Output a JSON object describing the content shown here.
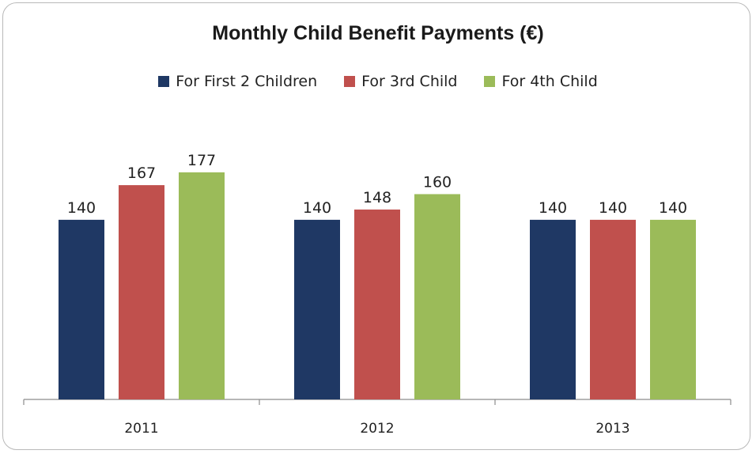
{
  "chart_data": {
    "type": "bar",
    "title": "Monthly Child Benefit Payments (€)",
    "categories": [
      "2011",
      "2012",
      "2013"
    ],
    "series": [
      {
        "name": "For First 2 Children",
        "color": "#1f3864",
        "values": [
          140,
          140,
          140
        ]
      },
      {
        "name": "For 3rd Child",
        "color": "#c0504d",
        "values": [
          167,
          148,
          140
        ]
      },
      {
        "name": "For 4th Child",
        "color": "#9bbb59",
        "values": [
          177,
          160,
          140
        ]
      }
    ],
    "ylim": [
      0,
      225
    ],
    "grid": false,
    "legend_position": "top"
  }
}
